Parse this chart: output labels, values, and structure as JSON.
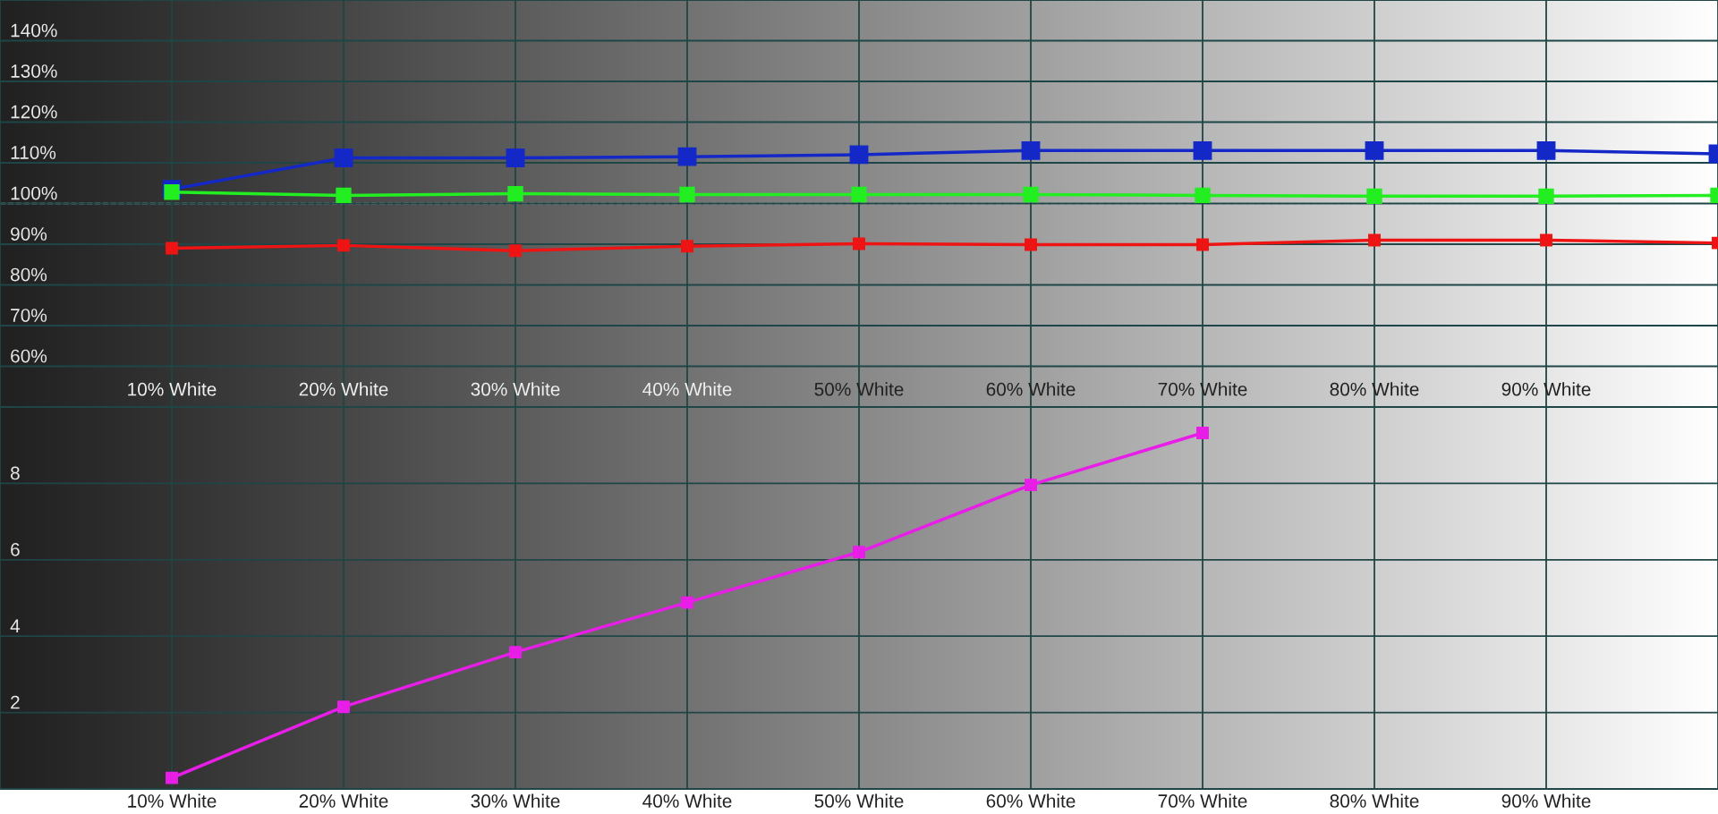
{
  "chart_data": [
    {
      "type": "line",
      "x": [
        10,
        20,
        30,
        40,
        50,
        60,
        70,
        80,
        90,
        100
      ],
      "xlim": [
        0,
        100
      ],
      "xticks": [
        {
          "value": 10,
          "label": "10% White"
        },
        {
          "value": 20,
          "label": "20% White"
        },
        {
          "value": 30,
          "label": "30% White"
        },
        {
          "value": 40,
          "label": "40% White"
        },
        {
          "value": 50,
          "label": "50% White"
        },
        {
          "value": 60,
          "label": "60% White"
        },
        {
          "value": 70,
          "label": "70% White"
        },
        {
          "value": 80,
          "label": "80% White"
        },
        {
          "value": 90,
          "label": "90% White"
        }
      ],
      "ylim": [
        50,
        150
      ],
      "yticks": [
        {
          "value": 60,
          "label": "60%"
        },
        {
          "value": 70,
          "label": "70%"
        },
        {
          "value": 80,
          "label": "80%"
        },
        {
          "value": 90,
          "label": "90%"
        },
        {
          "value": 100,
          "label": "100%"
        },
        {
          "value": 110,
          "label": "110%"
        },
        {
          "value": 120,
          "label": "120%"
        },
        {
          "value": 130,
          "label": "130%"
        },
        {
          "value": 140,
          "label": "140%"
        }
      ],
      "series": [
        {
          "color": "#1428c8",
          "values": [
            103.5,
            111.2,
            111.2,
            111.5,
            112,
            113,
            113,
            113,
            113,
            112.2
          ]
        },
        {
          "color": "#22ee22",
          "values": [
            102.8,
            102,
            102.4,
            102.2,
            102.2,
            102.2,
            102,
            101.8,
            101.8,
            102
          ]
        },
        {
          "color": "#ee1414",
          "values": [
            89,
            89.7,
            88.4,
            89.5,
            90.1,
            89.9,
            89.9,
            91,
            91,
            90.3
          ]
        }
      ],
      "ref_lines": [
        {
          "axis": "y",
          "value": 100,
          "color": "#ffffff",
          "line_style": "dashed"
        }
      ],
      "grid": true,
      "marker": "square",
      "line_style": "solid"
    },
    {
      "type": "line",
      "xlim": [
        0,
        100
      ],
      "xticks": [
        {
          "value": 10,
          "label": "10% White"
        },
        {
          "value": 20,
          "label": "20% White"
        },
        {
          "value": 30,
          "label": "30% White"
        },
        {
          "value": 40,
          "label": "40% White"
        },
        {
          "value": 50,
          "label": "50% White"
        },
        {
          "value": 60,
          "label": "60% White"
        },
        {
          "value": 70,
          "label": "70% White"
        },
        {
          "value": 80,
          "label": "80% White"
        },
        {
          "value": 90,
          "label": "90% White"
        }
      ],
      "ylim": [
        0,
        10
      ],
      "yticks": [
        2,
        4,
        6,
        8,
        {
          "value": 10,
          "label": null
        }
      ],
      "series": [
        {
          "color": "#e81ee8",
          "x": [
            10,
            20,
            30,
            40,
            50,
            60,
            70
          ],
          "values": [
            0.29,
            2.15,
            3.58,
            4.88,
            6.2,
            7.96,
            9.32
          ]
        }
      ],
      "grid": true,
      "marker": "square",
      "line_style": "solid"
    }
  ]
}
